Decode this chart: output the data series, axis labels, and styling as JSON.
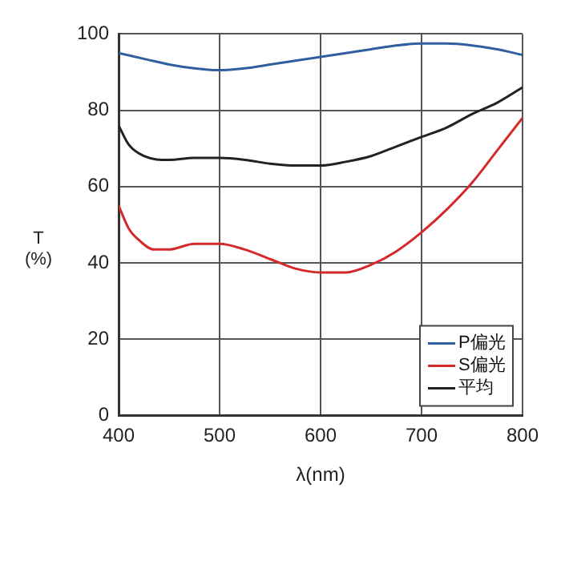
{
  "chart_data": {
    "type": "line",
    "xlabel": "λ(nm)",
    "ylabel": "T\n(%)",
    "xlim": [
      400,
      800
    ],
    "ylim": [
      0,
      100
    ],
    "xticks": [
      400,
      500,
      600,
      700,
      800
    ],
    "yticks": [
      0,
      20,
      40,
      60,
      80,
      100
    ],
    "grid": true,
    "legend": "bottom right",
    "series": [
      {
        "name": "P偏光",
        "color": "#2f5f9e",
        "x": [
          400,
          425,
          450,
          475,
          500,
          525,
          550,
          575,
          600,
          625,
          650,
          675,
          700,
          725,
          750,
          775,
          800
        ],
        "values": [
          95,
          93.5,
          92,
          91,
          90.5,
          91,
          92,
          93,
          94,
          95,
          96,
          97,
          97.5,
          97.5,
          97,
          96,
          94.5
        ]
      },
      {
        "name": "S偏光",
        "color": "#d42a2a",
        "x": [
          400,
          410,
          420,
          435,
          450,
          475,
          500,
          525,
          550,
          575,
          600,
          625,
          650,
          675,
          700,
          725,
          750,
          775,
          800
        ],
        "values": [
          55,
          49,
          46,
          43.5,
          43.5,
          45,
          45,
          43.5,
          41,
          38.5,
          37.5,
          37.5,
          39.5,
          43,
          48,
          54,
          61,
          69.5,
          78
        ]
      },
      {
        "name": "平均",
        "color": "#222222",
        "x": [
          400,
          410,
          425,
          450,
          475,
          500,
          525,
          550,
          575,
          600,
          625,
          650,
          675,
          700,
          725,
          750,
          775,
          800
        ],
        "values": [
          76,
          71,
          68,
          67,
          67.5,
          67.5,
          67,
          66,
          65.5,
          65.5,
          66.5,
          68,
          70.5,
          73,
          75.5,
          79,
          82,
          86
        ]
      }
    ]
  }
}
